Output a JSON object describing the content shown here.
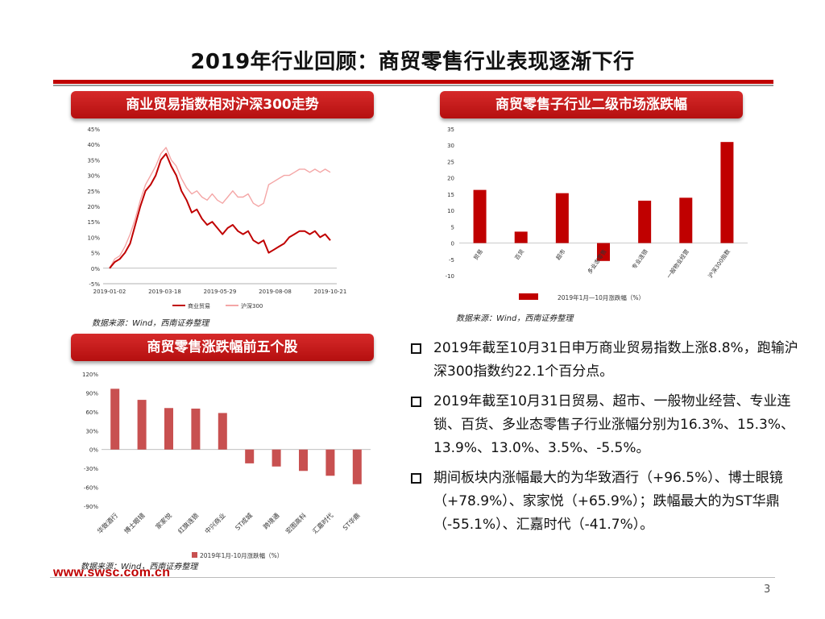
{
  "page": {
    "title": "2019年行业回顾：商贸零售行业表现逐渐下行",
    "logo_text": "www.swsc.com.cn",
    "page_number": "3"
  },
  "colors": {
    "accent": "#c00000",
    "series_light": "#f4a6a6",
    "bar_muted": "#c85050"
  },
  "banners": {
    "line_chart": "商业贸易指数相对沪深300走势",
    "sub_sector": "商贸零售子行业二级市场涨跌幅",
    "top_five": "商贸零售涨跌幅前五个股"
  },
  "sources": {
    "line_chart": "数据来源：Wind，西南证券整理",
    "sub_sector": "数据来源：Wind，西南证券整理",
    "top_five": "数据来源：Wind，西南证券整理"
  },
  "bullets": [
    "2019年截至10月31日申万商业贸易指数上涨8.8%，跑输沪深300指数约22.1个百分点。",
    "2019年截至10月31日贸易、超市、一般物业经营、专业连锁、百货、多业态零售子行业涨幅分别为16.3%、15.3%、13.9%、13.0%、3.5%、-5.5%。",
    "期间板块内涨幅最大的为华致酒行（+96.5%）、博士眼镜（+78.9%）、家家悦（+65.9%）；跌幅最大的为ST华鼎（-55.1%）、汇嘉时代（-41.7%）。"
  ],
  "chart_data": [
    {
      "id": "line_chart",
      "type": "line",
      "ylim": [
        -5,
        45
      ],
      "yticks": [
        "-5%",
        "0%",
        "5%",
        "10%",
        "15%",
        "20%",
        "25%",
        "30%",
        "35%",
        "40%",
        "45%"
      ],
      "ytick_values": [
        -5,
        0,
        5,
        10,
        15,
        20,
        25,
        30,
        35,
        40,
        45
      ],
      "xticks": [
        "2019-01-02",
        "2019-03-18",
        "2019-05-29",
        "2019-08-08",
        "2019-10-21"
      ],
      "series": [
        {
          "name": "商业贸易",
          "color": "#c00000",
          "values": [
            0,
            2,
            3,
            5,
            8,
            14,
            20,
            25,
            27,
            30,
            35,
            37,
            33,
            30,
            25,
            22,
            18,
            19,
            16,
            14,
            15,
            13,
            11,
            13,
            14,
            12,
            11,
            12,
            9,
            8,
            9,
            5,
            6,
            7,
            8,
            10,
            11,
            12,
            12,
            11,
            12,
            10,
            11,
            9
          ]
        },
        {
          "name": "沪深300",
          "color": "#f4a6a6",
          "values": [
            0,
            3,
            4,
            7,
            11,
            16,
            22,
            27,
            30,
            33,
            37,
            39,
            35,
            33,
            29,
            26,
            24,
            25,
            23,
            22,
            24,
            22,
            21,
            23,
            25,
            23,
            23,
            24,
            21,
            20,
            21,
            27,
            28,
            29,
            30,
            30,
            31,
            32,
            32,
            31,
            32,
            31,
            32,
            31
          ]
        }
      ]
    },
    {
      "id": "sub_sector",
      "type": "bar",
      "ylim": [
        -10,
        35
      ],
      "yticks": [
        "-10",
        "-5",
        "0",
        "5",
        "10",
        "15",
        "20",
        "25",
        "30",
        "35"
      ],
      "ytick_values": [
        -10,
        -5,
        0,
        5,
        10,
        15,
        20,
        25,
        30,
        35
      ],
      "categories": [
        "贸易",
        "百货",
        "超市",
        "多业态零售",
        "专业连锁",
        "一般物业经营",
        "沪深300指数"
      ],
      "values": [
        16.3,
        3.5,
        15.3,
        -5.5,
        13.0,
        13.9,
        31.0
      ],
      "legend": "2019年1月—10月涨跌幅（%）"
    },
    {
      "id": "top_five",
      "type": "bar",
      "ylim": [
        -90,
        120
      ],
      "yticks": [
        "-90%",
        "-60%",
        "-30%",
        "0%",
        "30%",
        "60%",
        "90%",
        "120%"
      ],
      "ytick_values": [
        -90,
        -60,
        -30,
        0,
        30,
        60,
        90,
        120
      ],
      "categories": [
        "华致酒行",
        "博士眼镜",
        "家家悦",
        "红旗连锁",
        "中兴商业",
        "ST成城",
        "跨境通",
        "宏图高科",
        "汇嘉时代",
        "ST华鼎"
      ],
      "values": [
        96.5,
        78.9,
        65.9,
        65.0,
        58.0,
        -22.0,
        -27.0,
        -34.0,
        -41.7,
        -55.1
      ],
      "legend": "2019年1月-10月涨跌幅（%）"
    }
  ]
}
